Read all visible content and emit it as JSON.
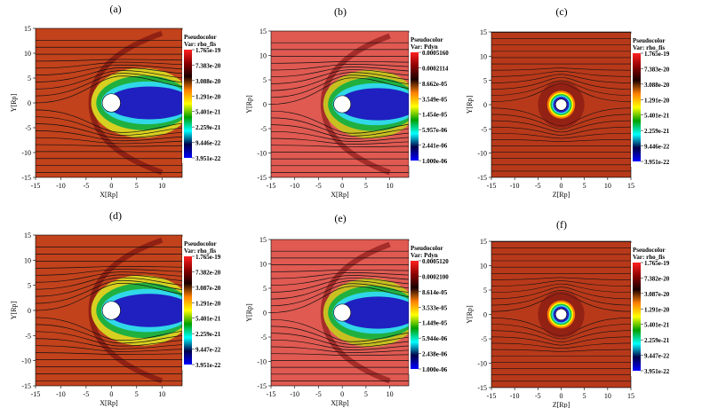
{
  "chart_data": [
    {
      "type": "heatmap",
      "panel_label": "(a)",
      "plane": "XY",
      "legend_title": "Pseudocolor",
      "var_label": "Var: rho_fis",
      "xlabel": "X[Rp]",
      "ylabel": "Y[Rp]",
      "xticks": [
        "-15",
        "-10",
        "-5",
        "0",
        "5",
        "10"
      ],
      "yticks": [
        "15",
        "10",
        "5",
        "0",
        "-5",
        "-10",
        "-15"
      ],
      "xlim": [
        -15,
        14
      ],
      "ylim": [
        -15,
        15
      ],
      "colorbar_ticks": [
        "1.765e-19",
        "7.383e-20",
        "3.088e-20",
        "1.291e-20",
        "5.401e-21",
        "2.259e-21",
        "9.446e-22",
        "3.951e-22"
      ],
      "scale": "log",
      "background": "#c2421c"
    },
    {
      "type": "heatmap",
      "panel_label": "(b)",
      "plane": "XY",
      "legend_title": "Pseudocolor",
      "var_label": "Var: Pdyn",
      "xlabel": "X[Rp]",
      "ylabel": "Y[Rp]",
      "xticks": [
        "-15",
        "-10",
        "-5",
        "0",
        "5",
        "10"
      ],
      "yticks": [
        "15",
        "10",
        "5",
        "0",
        "-5",
        "-10",
        "-15"
      ],
      "xlim": [
        -15,
        14
      ],
      "ylim": [
        -15,
        15
      ],
      "colorbar_ticks": [
        "0.0005160",
        "0.0002114",
        "8.662e-05",
        "3.549e-05",
        "1.454e-05",
        "5.957e-06",
        "2.441e-06",
        "1.000e-06"
      ],
      "scale": "log",
      "background": "#e05a52"
    },
    {
      "type": "heatmap",
      "panel_label": "(c)",
      "plane": "ZY",
      "legend_title": "Pseudocolor",
      "var_label": "Var: rho_fis",
      "xlabel": "Z[Rp]",
      "ylabel": "Y[Rp]",
      "xticks": [
        "-15",
        "-10",
        "-5",
        "0",
        "5",
        "10",
        "15"
      ],
      "yticks": [
        "15",
        "10",
        "5",
        "0",
        "-5",
        "-10",
        "-15"
      ],
      "xlim": [
        -15,
        15
      ],
      "ylim": [
        -15,
        15
      ],
      "colorbar_ticks": [
        "1.765e-19",
        "7.383e-20",
        "3.088e-20",
        "1.291e-20",
        "5.401e-21",
        "2.259e-21",
        "9.446e-22",
        "3.951e-22"
      ],
      "scale": "log",
      "background": "#b8391a"
    },
    {
      "type": "heatmap",
      "panel_label": "(d)",
      "plane": "XY",
      "legend_title": "Pseudocolor",
      "var_label": "Var: rho_fis",
      "xlabel": "X[Rp]",
      "ylabel": "Y[Rp]",
      "xticks": [
        "-15",
        "-10",
        "-5",
        "0",
        "5",
        "10"
      ],
      "yticks": [
        "15",
        "10",
        "5",
        "0",
        "-5",
        "-10",
        "-15"
      ],
      "xlim": [
        -15,
        14
      ],
      "ylim": [
        -15,
        15
      ],
      "colorbar_ticks": [
        "1.765e-19",
        "7.382e-20",
        "3.087e-20",
        "1.291e-20",
        "5.401e-21",
        "2.259e-21",
        "9.447e-22",
        "3.951e-22"
      ],
      "scale": "log",
      "background": "#c2421c"
    },
    {
      "type": "heatmap",
      "panel_label": "(e)",
      "plane": "XY",
      "legend_title": "Pseudocolor",
      "var_label": "Var: Pdyn",
      "xlabel": "X[Rp]",
      "ylabel": "Y[Rp]",
      "xticks": [
        "-15",
        "-10",
        "-5",
        "0",
        "5",
        "10"
      ],
      "yticks": [
        "15",
        "10",
        "5",
        "0",
        "-5",
        "-10",
        "-15"
      ],
      "xlim": [
        -15,
        14
      ],
      "ylim": [
        -15,
        15
      ],
      "colorbar_ticks": [
        "0.0005120",
        "0.0002100",
        "8.614e-05",
        "3.533e-05",
        "1.449e-05",
        "5.944e-06",
        "2.438e-06",
        "1.000e-06"
      ],
      "scale": "log",
      "background": "#e05a52"
    },
    {
      "type": "heatmap",
      "panel_label": "(f)",
      "plane": "ZY",
      "legend_title": "Pseudocolor",
      "var_label": "Var: rho_fis",
      "xlabel": "Z[Rp]",
      "ylabel": "Y[Rp]",
      "xticks": [
        "-15",
        "-10",
        "-5",
        "0",
        "5",
        "10",
        "15"
      ],
      "yticks": [
        "15",
        "10",
        "5",
        "0",
        "-5",
        "-10",
        "-15"
      ],
      "xlim": [
        -15,
        15
      ],
      "ylim": [
        -15,
        15
      ],
      "colorbar_ticks": [
        "1.765e-19",
        "7.382e-20",
        "3.087e-20",
        "1.291e-20",
        "5.401e-21",
        "2.259e-21",
        "9.447e-22",
        "3.951e-22"
      ],
      "scale": "log",
      "background": "#b8391a"
    }
  ]
}
